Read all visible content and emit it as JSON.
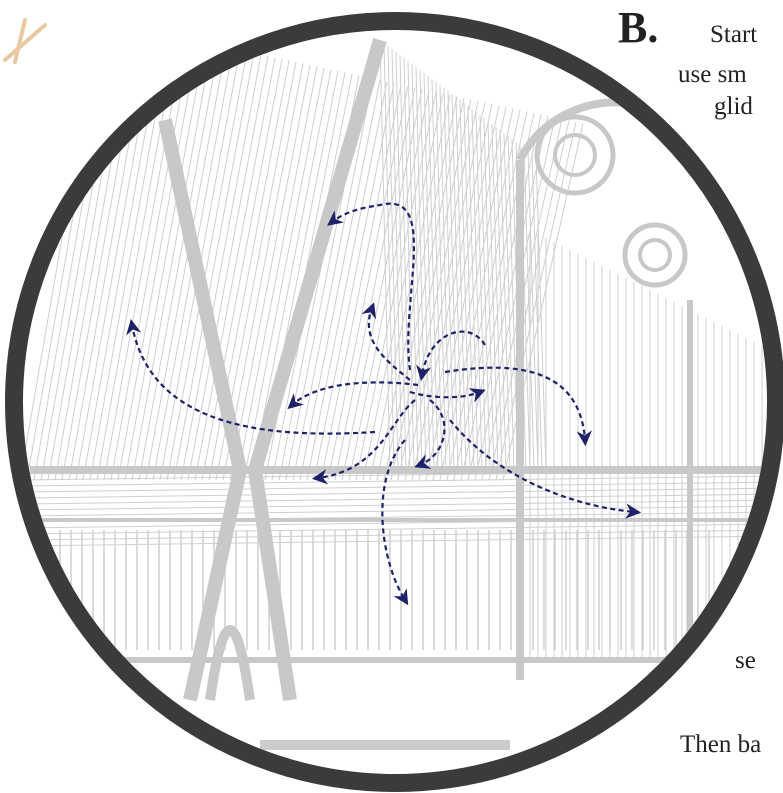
{
  "heading": {
    "label": "B.",
    "text": "Start"
  },
  "lines": [
    "use sm",
    "glid",
    "se",
    "Then ba"
  ]
}
